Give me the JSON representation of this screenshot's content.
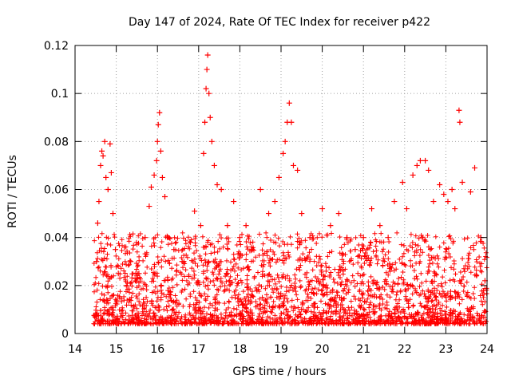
{
  "chart_data": {
    "type": "scatter",
    "title": "Day 147 of 2024, Rate Of TEC Index for receiver p422",
    "xlabel": "GPS time / hours",
    "ylabel": "ROTI / TECUs",
    "xlim": [
      14,
      24
    ],
    "ylim": [
      0,
      0.12
    ],
    "x_ticks": [
      "14",
      "15",
      "16",
      "17",
      "18",
      "19",
      "20",
      "21",
      "22",
      "23",
      "24"
    ],
    "y_ticks": [
      "0",
      "0.02",
      "0.04",
      "0.06",
      "0.08",
      "0.1",
      "0.12"
    ],
    "grid": true,
    "marker": "+",
    "color": "#ff0000",
    "series": [
      {
        "name": "ROTI",
        "points": [
          [
            14.5,
            0.008
          ],
          [
            14.52,
            0.03
          ],
          [
            14.55,
            0.046
          ],
          [
            14.58,
            0.055
          ],
          [
            14.62,
            0.07
          ],
          [
            14.65,
            0.076
          ],
          [
            14.68,
            0.074
          ],
          [
            14.72,
            0.08
          ],
          [
            14.75,
            0.065
          ],
          [
            14.8,
            0.06
          ],
          [
            14.85,
            0.079
          ],
          [
            14.88,
            0.067
          ],
          [
            14.92,
            0.05
          ],
          [
            14.98,
            0.035
          ],
          [
            15.05,
            0.025
          ],
          [
            15.2,
            0.036
          ],
          [
            15.35,
            0.03
          ],
          [
            15.55,
            0.025
          ],
          [
            15.7,
            0.04
          ],
          [
            15.8,
            0.053
          ],
          [
            15.85,
            0.061
          ],
          [
            15.92,
            0.066
          ],
          [
            15.98,
            0.072
          ],
          [
            16.0,
            0.08
          ],
          [
            16.02,
            0.087
          ],
          [
            16.05,
            0.092
          ],
          [
            16.08,
            0.076
          ],
          [
            16.12,
            0.065
          ],
          [
            16.18,
            0.057
          ],
          [
            16.25,
            0.04
          ],
          [
            16.4,
            0.035
          ],
          [
            16.6,
            0.03
          ],
          [
            16.8,
            0.038
          ],
          [
            16.9,
            0.051
          ],
          [
            17.05,
            0.045
          ],
          [
            17.12,
            0.075
          ],
          [
            17.15,
            0.088
          ],
          [
            17.18,
            0.102
          ],
          [
            17.2,
            0.11
          ],
          [
            17.22,
            0.116
          ],
          [
            17.25,
            0.1
          ],
          [
            17.28,
            0.09
          ],
          [
            17.32,
            0.08
          ],
          [
            17.38,
            0.07
          ],
          [
            17.45,
            0.062
          ],
          [
            17.55,
            0.06
          ],
          [
            17.7,
            0.045
          ],
          [
            17.85,
            0.055
          ],
          [
            18.0,
            0.04
          ],
          [
            18.15,
            0.045
          ],
          [
            18.3,
            0.035
          ],
          [
            18.5,
            0.06
          ],
          [
            18.7,
            0.05
          ],
          [
            18.85,
            0.055
          ],
          [
            18.95,
            0.065
          ],
          [
            19.05,
            0.075
          ],
          [
            19.1,
            0.08
          ],
          [
            19.15,
            0.088
          ],
          [
            19.2,
            0.096
          ],
          [
            19.25,
            0.088
          ],
          [
            19.3,
            0.07
          ],
          [
            19.4,
            0.068
          ],
          [
            19.5,
            0.05
          ],
          [
            19.7,
            0.04
          ],
          [
            20.0,
            0.052
          ],
          [
            20.2,
            0.045
          ],
          [
            20.4,
            0.05
          ],
          [
            20.6,
            0.04
          ],
          [
            20.8,
            0.035
          ],
          [
            21.0,
            0.04
          ],
          [
            21.2,
            0.052
          ],
          [
            21.4,
            0.045
          ],
          [
            21.6,
            0.04
          ],
          [
            21.75,
            0.055
          ],
          [
            21.95,
            0.063
          ],
          [
            22.05,
            0.052
          ],
          [
            22.2,
            0.066
          ],
          [
            22.3,
            0.07
          ],
          [
            22.38,
            0.072
          ],
          [
            22.5,
            0.072
          ],
          [
            22.58,
            0.068
          ],
          [
            22.7,
            0.055
          ],
          [
            22.85,
            0.062
          ],
          [
            22.95,
            0.058
          ],
          [
            23.05,
            0.055
          ],
          [
            23.15,
            0.06
          ],
          [
            23.22,
            0.052
          ],
          [
            23.32,
            0.093
          ],
          [
            23.34,
            0.088
          ],
          [
            23.4,
            0.063
          ],
          [
            23.6,
            0.059
          ],
          [
            23.7,
            0.069
          ],
          [
            23.85,
            0.04
          ],
          [
            23.95,
            0.022
          ]
        ]
      }
    ]
  }
}
